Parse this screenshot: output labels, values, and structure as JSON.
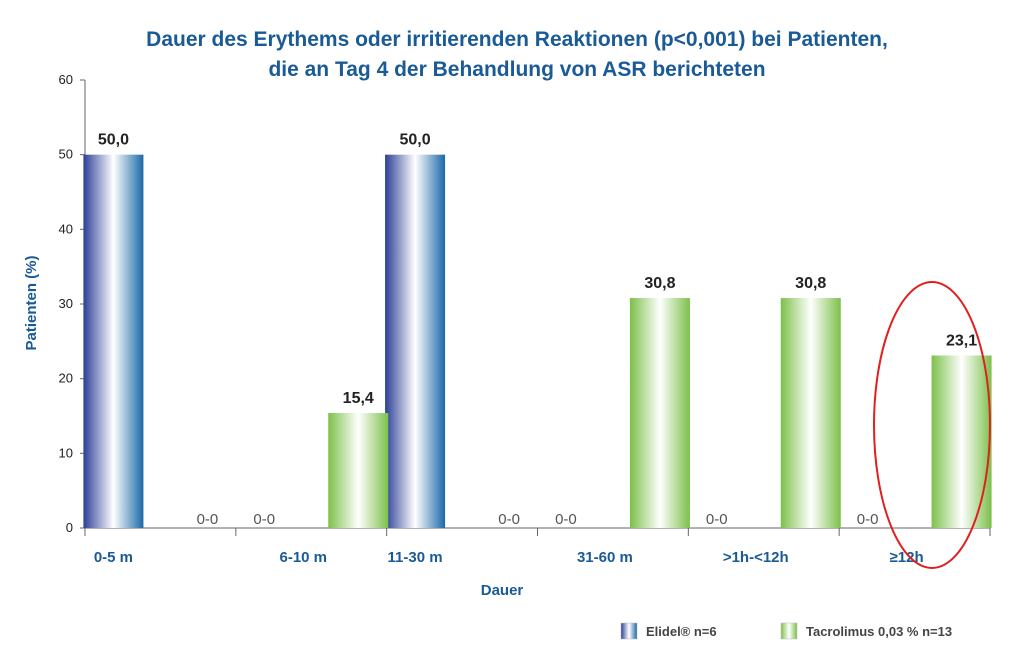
{
  "chart_data": {
    "type": "bar",
    "title_lines": [
      "Dauer des Erythems oder irritierenden Reaktionen (p<0,001) bei Patienten,",
      "die an Tag 4 der Behandlung von ASR berichteten"
    ],
    "xlabel": "Dauer",
    "ylabel": "Patienten (%)",
    "ylim": [
      0,
      60
    ],
    "yticks": [
      0,
      10,
      20,
      30,
      40,
      50,
      60
    ],
    "categories": [
      "0-5 m",
      "6-10 m",
      "11-30 m",
      "31-60 m",
      ">1h-<12h",
      "≥12h"
    ],
    "series": [
      {
        "name": "Elidel® n=6",
        "color": "#2c4fa0",
        "values": [
          50.0,
          0,
          50.0,
          0,
          0,
          0
        ],
        "labels": [
          "50,0",
          "0-0",
          "50,0",
          "0-0",
          "0-0",
          "0-0"
        ]
      },
      {
        "name": "Tacrolimus 0,03 % n=13",
        "color": "#7cc04a",
        "values": [
          0,
          15.4,
          0,
          30.8,
          30.8,
          23.1
        ],
        "labels": [
          "0-0",
          "15,4",
          "0-0",
          "30,8",
          "30,8",
          "23,1"
        ]
      }
    ],
    "highlight_category": "≥12h",
    "highlight_color": "#e02020",
    "legend_position": "bottom-right",
    "grid": false
  }
}
